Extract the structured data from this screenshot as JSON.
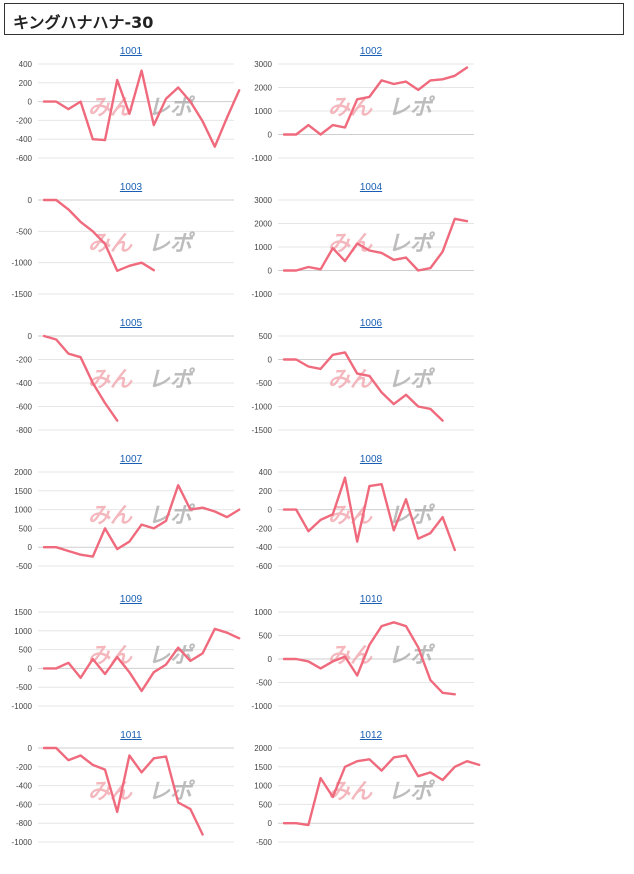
{
  "page": {
    "title": "キングハナハナ-30"
  },
  "watermark": {
    "part1": "みん",
    "part2": "レポ"
  },
  "colors": {
    "line": "#f06a7d",
    "grid": "#e6e6e6",
    "zero": "#cfcfcf",
    "link": "#1a5fb4"
  },
  "chart_data": [
    {
      "type": "line",
      "title": "1001",
      "ylim": [
        -600,
        400
      ],
      "yticks": [
        400,
        200,
        0,
        -200,
        -400,
        -600
      ],
      "series": [
        {
          "values": [
            0,
            0,
            -80,
            0,
            -400,
            -410,
            230,
            -130,
            330,
            -250,
            30,
            150,
            0,
            -210,
            -480,
            -170,
            120
          ]
        }
      ]
    },
    {
      "type": "line",
      "title": "1002",
      "ylim": [
        -1000,
        3000
      ],
      "yticks": [
        3000,
        2000,
        1000,
        0,
        -1000
      ],
      "series": [
        {
          "values": [
            0,
            0,
            400,
            0,
            400,
            300,
            1500,
            1600,
            2300,
            2150,
            2250,
            1900,
            2300,
            2350,
            2500,
            2850
          ]
        }
      ]
    },
    {
      "type": "line",
      "title": "1003",
      "ylim": [
        -1500,
        0
      ],
      "yticks": [
        0,
        -500,
        -1000,
        -1500
      ],
      "series": [
        {
          "values": [
            0,
            0,
            -150,
            -350,
            -500,
            -700,
            -1130,
            -1050,
            -1000,
            -1120
          ]
        }
      ]
    },
    {
      "type": "line",
      "title": "1004",
      "ylim": [
        -1000,
        3000
      ],
      "yticks": [
        3000,
        2000,
        1000,
        0,
        -1000
      ],
      "series": [
        {
          "values": [
            0,
            0,
            150,
            50,
            950,
            400,
            1150,
            850,
            750,
            450,
            550,
            0,
            100,
            800,
            2200,
            2100
          ]
        }
      ]
    },
    {
      "type": "line",
      "title": "1005",
      "ylim": [
        -800,
        0
      ],
      "yticks": [
        0,
        -200,
        -400,
        -600,
        -800
      ],
      "series": [
        {
          "values": [
            0,
            -30,
            -150,
            -180,
            -400,
            -570,
            -720
          ]
        }
      ]
    },
    {
      "type": "line",
      "title": "1006",
      "ylim": [
        -1500,
        500
      ],
      "yticks": [
        500,
        0,
        -500,
        -1000,
        -1500
      ],
      "series": [
        {
          "values": [
            0,
            0,
            -150,
            -200,
            100,
            150,
            -300,
            -350,
            -700,
            -950,
            -750,
            -1000,
            -1050,
            -1300
          ]
        }
      ]
    },
    {
      "type": "line",
      "title": "1007",
      "ylim": [
        -500,
        2000
      ],
      "yticks": [
        2000,
        1500,
        1000,
        500,
        0,
        -500
      ],
      "series": [
        {
          "values": [
            0,
            0,
            -100,
            -200,
            -250,
            500,
            -50,
            150,
            600,
            500,
            700,
            1650,
            1000,
            1050,
            950,
            800,
            1000
          ]
        }
      ]
    },
    {
      "type": "line",
      "title": "1008",
      "ylim": [
        -600,
        400
      ],
      "yticks": [
        400,
        200,
        0,
        -200,
        -400,
        -600
      ],
      "series": [
        {
          "values": [
            0,
            0,
            -230,
            -110,
            -50,
            340,
            -340,
            250,
            270,
            -220,
            110,
            -310,
            -250,
            -80,
            -430
          ]
        }
      ]
    },
    {
      "type": "line",
      "title": "1009",
      "ylim": [
        -1000,
        1500
      ],
      "yticks": [
        1500,
        1000,
        500,
        0,
        -500,
        -1000
      ],
      "series": [
        {
          "values": [
            0,
            0,
            150,
            -250,
            250,
            -150,
            300,
            -100,
            -600,
            -100,
            100,
            550,
            200,
            400,
            1050,
            950,
            800
          ]
        }
      ]
    },
    {
      "type": "line",
      "title": "1010",
      "ylim": [
        -1000,
        1000
      ],
      "yticks": [
        1000,
        500,
        0,
        -500,
        -1000
      ],
      "series": [
        {
          "values": [
            0,
            0,
            -50,
            -200,
            -50,
            50,
            -350,
            300,
            700,
            780,
            700,
            250,
            -450,
            -720,
            -750
          ]
        }
      ]
    },
    {
      "type": "line",
      "title": "1011",
      "ylim": [
        -1000,
        0
      ],
      "yticks": [
        0,
        -200,
        -400,
        -600,
        -800,
        -1000
      ],
      "series": [
        {
          "values": [
            0,
            0,
            -130,
            -80,
            -180,
            -230,
            -680,
            -80,
            -260,
            -110,
            -90,
            -580,
            -650,
            -920
          ]
        }
      ]
    },
    {
      "type": "line",
      "title": "1012",
      "ylim": [
        -500,
        2000
      ],
      "yticks": [
        2000,
        1500,
        1000,
        500,
        0,
        -500
      ],
      "series": [
        {
          "values": [
            0,
            0,
            -50,
            1200,
            700,
            1500,
            1650,
            1700,
            1400,
            1750,
            1800,
            1250,
            1350,
            1150,
            1500,
            1650,
            1550
          ]
        }
      ]
    }
  ]
}
